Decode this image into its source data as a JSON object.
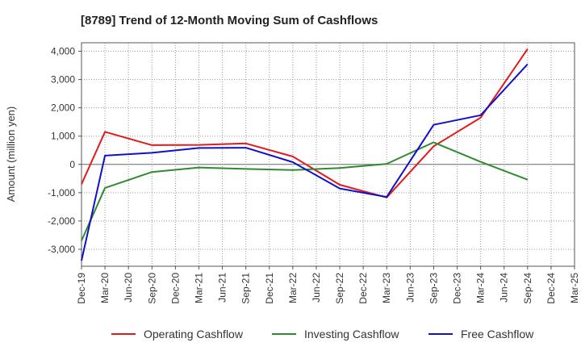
{
  "chart_data": {
    "type": "line",
    "title": "[8789]  Trend of 12-Month Moving Sum of Cashflows",
    "xlabel": "",
    "ylabel": "Amount (million yen)",
    "ylim": [
      -3600,
      4300
    ],
    "yticks": [
      -3000,
      -2000,
      -1000,
      0,
      1000,
      2000,
      3000,
      4000
    ],
    "ytick_labels": [
      "-3,000",
      "-2,000",
      "-1,000",
      "0",
      "1,000",
      "2,000",
      "3,000",
      "4,000"
    ],
    "categories": [
      "Dec-19",
      "Mar-20",
      "Jun-20",
      "Sep-20",
      "Dec-20",
      "Mar-21",
      "Jun-21",
      "Sep-21",
      "Dec-21",
      "Mar-22",
      "Jun-22",
      "Sep-22",
      "Dec-22",
      "Mar-23",
      "Jun-23",
      "Sep-23",
      "Dec-23",
      "Mar-24",
      "Jun-24",
      "Sep-24",
      "Dec-24",
      "Mar-25"
    ],
    "grid": true,
    "legend_position": "bottom",
    "series": [
      {
        "name": "Operating Cashflow",
        "color": "#e31a1c",
        "values": [
          -700,
          1150,
          null,
          680,
          null,
          690,
          null,
          740,
          null,
          280,
          null,
          -720,
          null,
          -1170,
          null,
          640,
          null,
          1650,
          null,
          4080,
          null,
          null
        ]
      },
      {
        "name": "Investing Cashflow",
        "color": "#2e8b2e",
        "values": [
          -2700,
          -830,
          null,
          -270,
          null,
          -110,
          null,
          -160,
          null,
          -200,
          null,
          -130,
          null,
          20,
          null,
          780,
          null,
          90,
          null,
          -540,
          null,
          null
        ]
      },
      {
        "name": "Free Cashflow",
        "color": "#1010cc",
        "values": [
          -3400,
          310,
          null,
          410,
          null,
          580,
          null,
          590,
          null,
          80,
          null,
          -850,
          null,
          -1150,
          null,
          1400,
          null,
          1740,
          null,
          3540,
          null,
          null
        ]
      }
    ]
  }
}
